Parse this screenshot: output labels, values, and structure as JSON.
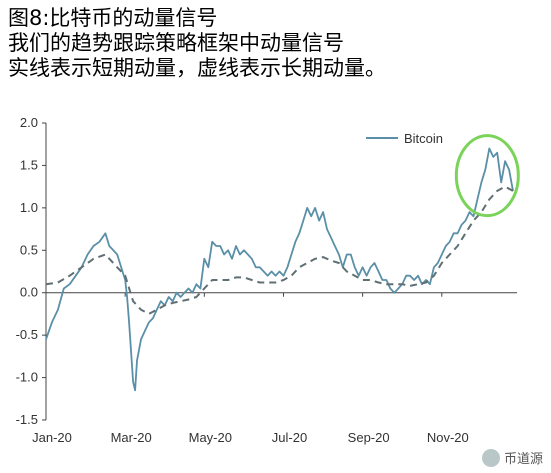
{
  "title_lines": [
    "图8:比特币的动量信号",
    "我们的趋势跟踪策略框架中动量信号",
    "实线表示短期动量，虚线表示长期动量。"
  ],
  "watermark": "币道源",
  "colors": {
    "solid_line": "#5a8fa8",
    "dashed_line": "#5f6f74",
    "axis": "#444444",
    "highlight_circle": "#7bd35a"
  },
  "chart_data": {
    "type": "line",
    "title": "",
    "xlabel": "",
    "ylabel": "",
    "ylim": [
      -1.5,
      2.0
    ],
    "yticks": [
      "2.0",
      "1.5",
      "1.0",
      "0.5",
      "0.0",
      "-0.5",
      "-1.0",
      "-1.5"
    ],
    "xticks": [
      "Jan-20",
      "Mar-20",
      "May-20",
      "Jul-20",
      "Sep-20",
      "Nov-20"
    ],
    "xtick_months": [
      0,
      2,
      4,
      6,
      8,
      10
    ],
    "x_unit": "months since Jan-20",
    "legend": {
      "entries": [
        "Bitcoin"
      ],
      "placement": "top-right"
    },
    "grid": false,
    "annotation": "green circle highlighting late Nov-Dec 2020",
    "series": [
      {
        "name": "Bitcoin",
        "style": "solid",
        "x": [
          0.0,
          0.15,
          0.3,
          0.45,
          0.6,
          0.75,
          0.9,
          1.05,
          1.2,
          1.35,
          1.5,
          1.6,
          1.7,
          1.8,
          1.9,
          2.0,
          2.05,
          2.1,
          2.15,
          2.2,
          2.25,
          2.3,
          2.4,
          2.5,
          2.6,
          2.7,
          2.8,
          2.9,
          3.0,
          3.1,
          3.2,
          3.3,
          3.4,
          3.5,
          3.6,
          3.7,
          3.8,
          3.9,
          4.0,
          4.1,
          4.2,
          4.3,
          4.4,
          4.5,
          4.6,
          4.7,
          4.8,
          4.9,
          5.0,
          5.1,
          5.2,
          5.3,
          5.4,
          5.5,
          5.6,
          5.7,
          5.8,
          5.9,
          6.0,
          6.1,
          6.2,
          6.3,
          6.4,
          6.5,
          6.6,
          6.7,
          6.8,
          6.9,
          7.0,
          7.1,
          7.2,
          7.3,
          7.4,
          7.5,
          7.6,
          7.7,
          7.8,
          7.9,
          8.0,
          8.1,
          8.2,
          8.3,
          8.4,
          8.5,
          8.6,
          8.7,
          8.8,
          8.9,
          9.0,
          9.1,
          9.2,
          9.3,
          9.4,
          9.5,
          9.6,
          9.7,
          9.8,
          9.9,
          10.0,
          10.1,
          10.2,
          10.3,
          10.4,
          10.5,
          10.6,
          10.7,
          10.8,
          10.9,
          11.0,
          11.1,
          11.2,
          11.3,
          11.4,
          11.5,
          11.6,
          11.7,
          11.8
        ],
        "y": [
          -0.55,
          -0.35,
          -0.2,
          0.05,
          0.1,
          0.2,
          0.3,
          0.45,
          0.55,
          0.6,
          0.7,
          0.55,
          0.5,
          0.45,
          0.3,
          0.15,
          -0.05,
          -0.35,
          -0.7,
          -1.05,
          -1.15,
          -0.8,
          -0.55,
          -0.45,
          -0.35,
          -0.3,
          -0.2,
          -0.1,
          -0.15,
          -0.05,
          -0.1,
          0.0,
          -0.05,
          0.0,
          0.05,
          0.0,
          0.1,
          0.05,
          0.4,
          0.3,
          0.6,
          0.55,
          0.55,
          0.45,
          0.5,
          0.4,
          0.55,
          0.45,
          0.5,
          0.45,
          0.4,
          0.3,
          0.3,
          0.25,
          0.2,
          0.25,
          0.2,
          0.25,
          0.2,
          0.3,
          0.45,
          0.6,
          0.7,
          0.85,
          1.0,
          0.9,
          1.0,
          0.85,
          0.95,
          0.75,
          0.65,
          0.55,
          0.45,
          0.3,
          0.45,
          0.45,
          0.3,
          0.2,
          0.3,
          0.2,
          0.3,
          0.35,
          0.25,
          0.15,
          0.15,
          0.05,
          0.0,
          0.05,
          0.1,
          0.2,
          0.2,
          0.15,
          0.2,
          0.1,
          0.15,
          0.1,
          0.3,
          0.35,
          0.45,
          0.55,
          0.6,
          0.7,
          0.7,
          0.8,
          0.85,
          0.95,
          0.9,
          1.1,
          1.3,
          1.45,
          1.7,
          1.6,
          1.65,
          1.3,
          1.55,
          1.45,
          1.2
        ]
      },
      {
        "name": "",
        "style": "dashed",
        "x": [
          0.0,
          0.3,
          0.6,
          0.9,
          1.2,
          1.5,
          1.8,
          2.0,
          2.2,
          2.4,
          2.6,
          2.8,
          3.0,
          3.2,
          3.4,
          3.6,
          3.8,
          4.0,
          4.2,
          4.4,
          4.6,
          4.8,
          5.0,
          5.2,
          5.4,
          5.6,
          5.8,
          6.0,
          6.2,
          6.4,
          6.6,
          6.8,
          7.0,
          7.2,
          7.4,
          7.6,
          7.8,
          8.0,
          8.2,
          8.4,
          8.6,
          8.8,
          9.0,
          9.2,
          9.4,
          9.6,
          9.8,
          10.0,
          10.2,
          10.4,
          10.6,
          10.8,
          11.0,
          11.2,
          11.4,
          11.6,
          11.8
        ],
        "y": [
          0.1,
          0.12,
          0.2,
          0.3,
          0.4,
          0.45,
          0.3,
          0.2,
          -0.1,
          -0.2,
          -0.25,
          -0.2,
          -0.15,
          -0.12,
          -0.1,
          -0.08,
          -0.05,
          0.05,
          0.15,
          0.15,
          0.15,
          0.18,
          0.18,
          0.15,
          0.12,
          0.12,
          0.12,
          0.15,
          0.2,
          0.3,
          0.35,
          0.4,
          0.42,
          0.38,
          0.35,
          0.25,
          0.2,
          0.15,
          0.15,
          0.12,
          0.1,
          0.1,
          0.1,
          0.08,
          0.1,
          0.12,
          0.2,
          0.35,
          0.45,
          0.55,
          0.7,
          0.85,
          0.95,
          1.1,
          1.2,
          1.25,
          1.2
        ]
      }
    ],
    "x_range": [
      0,
      11.9
    ]
  }
}
